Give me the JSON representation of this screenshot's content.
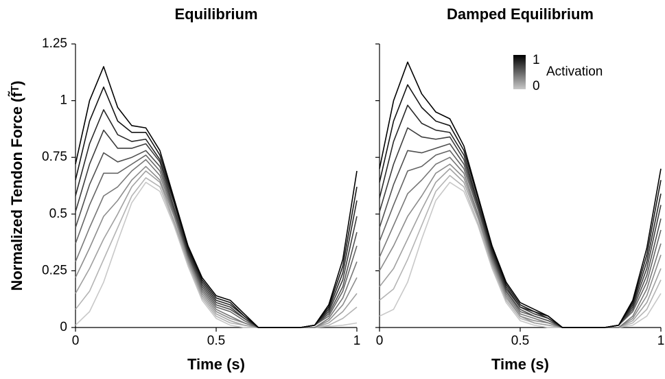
{
  "chart_data": [
    {
      "type": "line",
      "title": "Equilibrium",
      "xlabel": "Time (s)",
      "ylabel": "Normalized Tendon Force (f̃ᵀ)",
      "xlim": [
        0,
        1
      ],
      "xticks": [
        0,
        0.5,
        1
      ],
      "ylim": [
        0,
        1.25
      ],
      "yticks": [
        0,
        0.25,
        0.5,
        0.75,
        1,
        1.25
      ],
      "show_ytick_labels": true,
      "x": [
        0,
        0.05,
        0.1,
        0.15,
        0.2,
        0.25,
        0.3,
        0.35,
        0.4,
        0.45,
        0.5,
        0.55,
        0.6,
        0.65,
        0.7,
        0.75,
        0.8,
        0.85,
        0.9,
        0.95,
        1
      ],
      "series": [
        {
          "color": "#c8c8c8",
          "values": [
            0.01,
            0.07,
            0.2,
            0.38,
            0.55,
            0.64,
            0.6,
            0.45,
            0.27,
            0.12,
            0.04,
            0.01,
            0,
            0,
            0,
            0,
            0,
            0,
            0.005,
            0.01,
            0.02
          ]
        },
        {
          "color": "#b4b4b4",
          "values": [
            0.08,
            0.16,
            0.3,
            0.44,
            0.58,
            0.66,
            0.62,
            0.46,
            0.28,
            0.13,
            0.05,
            0.02,
            0.01,
            0,
            0,
            0,
            0,
            0,
            0.01,
            0.04,
            0.09
          ]
        },
        {
          "color": "#a0a0a0",
          "values": [
            0.15,
            0.26,
            0.39,
            0.5,
            0.62,
            0.69,
            0.64,
            0.47,
            0.29,
            0.14,
            0.06,
            0.03,
            0.01,
            0,
            0,
            0,
            0,
            0,
            0.02,
            0.07,
            0.15
          ]
        },
        {
          "color": "#8c8c8c",
          "values": [
            0.22,
            0.35,
            0.49,
            0.56,
            0.65,
            0.71,
            0.65,
            0.49,
            0.3,
            0.15,
            0.07,
            0.04,
            0.02,
            0,
            0,
            0,
            0,
            0,
            0.03,
            0.1,
            0.22
          ]
        },
        {
          "color": "#787878",
          "values": [
            0.29,
            0.44,
            0.58,
            0.62,
            0.69,
            0.74,
            0.67,
            0.5,
            0.31,
            0.16,
            0.08,
            0.05,
            0.02,
            0,
            0,
            0,
            0,
            0,
            0.04,
            0.13,
            0.29
          ]
        },
        {
          "color": "#646464",
          "values": [
            0.37,
            0.54,
            0.68,
            0.68,
            0.72,
            0.76,
            0.69,
            0.51,
            0.32,
            0.17,
            0.09,
            0.07,
            0.03,
            0,
            0,
            0,
            0,
            0.01,
            0.05,
            0.16,
            0.36
          ]
        },
        {
          "color": "#505050",
          "values": [
            0.44,
            0.63,
            0.77,
            0.73,
            0.75,
            0.78,
            0.71,
            0.52,
            0.32,
            0.18,
            0.1,
            0.08,
            0.04,
            0,
            0,
            0,
            0,
            0.01,
            0.06,
            0.18,
            0.42
          ]
        },
        {
          "color": "#3c3c3c",
          "values": [
            0.51,
            0.72,
            0.87,
            0.79,
            0.79,
            0.81,
            0.73,
            0.53,
            0.33,
            0.19,
            0.11,
            0.09,
            0.04,
            0,
            0,
            0,
            0,
            0.01,
            0.07,
            0.21,
            0.49
          ]
        },
        {
          "color": "#282828",
          "values": [
            0.58,
            0.81,
            0.96,
            0.85,
            0.82,
            0.83,
            0.74,
            0.55,
            0.34,
            0.2,
            0.12,
            0.1,
            0.05,
            0,
            0,
            0,
            0,
            0.01,
            0.08,
            0.24,
            0.56
          ]
        },
        {
          "color": "#141414",
          "values": [
            0.65,
            0.91,
            1.06,
            0.91,
            0.86,
            0.86,
            0.76,
            0.56,
            0.35,
            0.21,
            0.13,
            0.11,
            0.05,
            0,
            0,
            0,
            0,
            0.01,
            0.09,
            0.27,
            0.62
          ]
        },
        {
          "color": "#000000",
          "values": [
            0.72,
            1.0,
            1.15,
            0.97,
            0.89,
            0.88,
            0.78,
            0.57,
            0.36,
            0.22,
            0.14,
            0.12,
            0.06,
            0,
            0,
            0,
            0,
            0.01,
            0.1,
            0.3,
            0.69
          ]
        }
      ]
    },
    {
      "type": "line",
      "title": "Damped Equilibrium",
      "xlabel": "Time (s)",
      "xlim": [
        0,
        1
      ],
      "xticks": [
        0,
        0.5,
        1
      ],
      "ylim": [
        0,
        1.25
      ],
      "yticks": [
        0,
        0.25,
        0.5,
        0.75,
        1,
        1.25
      ],
      "show_ytick_labels": false,
      "colorbar": {
        "label": "Activation",
        "ticks": [
          1,
          0
        ],
        "colors": [
          "#000000",
          "#c8c8c8"
        ]
      },
      "x": [
        0,
        0.05,
        0.1,
        0.15,
        0.2,
        0.25,
        0.3,
        0.35,
        0.4,
        0.45,
        0.5,
        0.55,
        0.6,
        0.65,
        0.7,
        0.75,
        0.8,
        0.85,
        0.9,
        0.95,
        1
      ],
      "series": [
        {
          "color": "#c8c8c8",
          "values": [
            0.05,
            0.08,
            0.2,
            0.39,
            0.56,
            0.64,
            0.6,
            0.45,
            0.26,
            0.11,
            0.03,
            0.01,
            0,
            0,
            0,
            0,
            0,
            0,
            0.01,
            0.05,
            0.15
          ]
        },
        {
          "color": "#b4b4b4",
          "values": [
            0.12,
            0.17,
            0.3,
            0.45,
            0.6,
            0.67,
            0.62,
            0.46,
            0.27,
            0.12,
            0.04,
            0.02,
            0.01,
            0,
            0,
            0,
            0,
            0,
            0.02,
            0.08,
            0.21
          ]
        },
        {
          "color": "#a0a0a0",
          "values": [
            0.18,
            0.26,
            0.39,
            0.52,
            0.64,
            0.7,
            0.64,
            0.48,
            0.28,
            0.13,
            0.05,
            0.02,
            0.01,
            0,
            0,
            0,
            0,
            0,
            0.03,
            0.11,
            0.26
          ]
        },
        {
          "color": "#8c8c8c",
          "values": [
            0.25,
            0.36,
            0.49,
            0.58,
            0.68,
            0.72,
            0.66,
            0.49,
            0.29,
            0.14,
            0.05,
            0.03,
            0.02,
            0,
            0,
            0,
            0,
            0,
            0.04,
            0.14,
            0.32
          ]
        },
        {
          "color": "#787878",
          "values": [
            0.31,
            0.45,
            0.59,
            0.65,
            0.72,
            0.75,
            0.68,
            0.5,
            0.3,
            0.15,
            0.06,
            0.04,
            0.02,
            0,
            0,
            0,
            0,
            0,
            0.05,
            0.17,
            0.37
          ]
        },
        {
          "color": "#646464",
          "values": [
            0.38,
            0.54,
            0.69,
            0.71,
            0.76,
            0.78,
            0.7,
            0.52,
            0.31,
            0.16,
            0.07,
            0.05,
            0.03,
            0,
            0,
            0,
            0,
            0.01,
            0.07,
            0.2,
            0.43
          ]
        },
        {
          "color": "#505050",
          "values": [
            0.44,
            0.63,
            0.78,
            0.77,
            0.79,
            0.81,
            0.72,
            0.53,
            0.32,
            0.16,
            0.08,
            0.05,
            0.03,
            0,
            0,
            0,
            0,
            0.01,
            0.08,
            0.23,
            0.48
          ]
        },
        {
          "color": "#3c3c3c",
          "values": [
            0.51,
            0.72,
            0.88,
            0.84,
            0.83,
            0.84,
            0.74,
            0.54,
            0.33,
            0.17,
            0.09,
            0.06,
            0.04,
            0,
            0,
            0,
            0,
            0.01,
            0.09,
            0.26,
            0.54
          ]
        },
        {
          "color": "#282828",
          "values": [
            0.57,
            0.82,
            0.98,
            0.9,
            0.87,
            0.86,
            0.76,
            0.55,
            0.34,
            0.18,
            0.09,
            0.07,
            0.04,
            0,
            0,
            0,
            0,
            0.01,
            0.1,
            0.29,
            0.59
          ]
        },
        {
          "color": "#141414",
          "values": [
            0.64,
            0.91,
            1.07,
            0.97,
            0.91,
            0.89,
            0.78,
            0.57,
            0.35,
            0.19,
            0.1,
            0.07,
            0.05,
            0,
            0,
            0,
            0,
            0.01,
            0.11,
            0.32,
            0.65
          ]
        },
        {
          "color": "#000000",
          "values": [
            0.7,
            1.0,
            1.17,
            1.03,
            0.95,
            0.92,
            0.8,
            0.58,
            0.36,
            0.2,
            0.11,
            0.08,
            0.05,
            0,
            0,
            0,
            0,
            0.01,
            0.12,
            0.35,
            0.7
          ]
        }
      ]
    }
  ]
}
